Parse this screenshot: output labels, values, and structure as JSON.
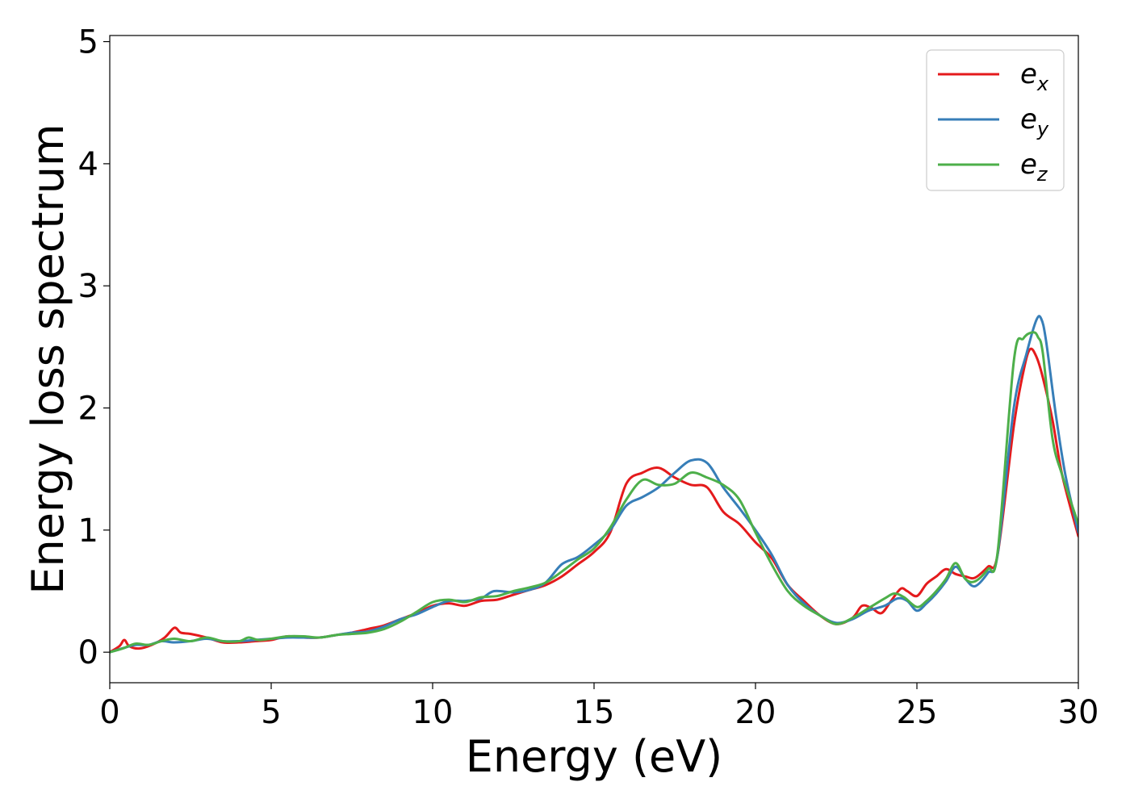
{
  "chart_data": {
    "type": "line",
    "title": "",
    "xlabel": "Energy (eV)",
    "ylabel": "Energy loss spectrum",
    "xlim": [
      0,
      30
    ],
    "ylim": [
      -0.25,
      5.05
    ],
    "xticks": [
      0,
      5,
      10,
      15,
      20,
      25,
      30
    ],
    "yticks": [
      0,
      1,
      2,
      3,
      4,
      5
    ],
    "grid": false,
    "legend_position": "top-right",
    "series": [
      {
        "name": "e",
        "subscript": "x",
        "color": "#e41a1c",
        "x": [
          0,
          0.3,
          0.45,
          0.6,
          0.9,
          1.3,
          1.7,
          2.0,
          2.2,
          2.5,
          3.0,
          3.5,
          4.0,
          4.5,
          5.0,
          5.5,
          6.0,
          6.5,
          7.0,
          7.5,
          8.0,
          8.5,
          9.0,
          9.5,
          10.0,
          10.5,
          11.0,
          11.5,
          12.0,
          12.5,
          13.0,
          13.5,
          14.0,
          14.5,
          15.0,
          15.5,
          16.0,
          16.5,
          17.0,
          17.5,
          18.0,
          18.5,
          19.0,
          19.5,
          20.0,
          20.5,
          21.0,
          21.5,
          22.0,
          22.5,
          23.0,
          23.3,
          23.6,
          23.9,
          24.2,
          24.5,
          24.7,
          25.0,
          25.3,
          25.6,
          25.9,
          26.2,
          26.5,
          26.8,
          27.2,
          27.5,
          28.0,
          28.3,
          28.5,
          28.7,
          28.9,
          29.2,
          29.5,
          30.0
        ],
        "y": [
          0.0,
          0.05,
          0.1,
          0.05,
          0.03,
          0.06,
          0.12,
          0.2,
          0.16,
          0.15,
          0.12,
          0.08,
          0.08,
          0.09,
          0.1,
          0.13,
          0.12,
          0.12,
          0.14,
          0.16,
          0.19,
          0.22,
          0.27,
          0.32,
          0.38,
          0.4,
          0.38,
          0.42,
          0.43,
          0.47,
          0.51,
          0.55,
          0.62,
          0.72,
          0.82,
          0.98,
          1.38,
          1.47,
          1.51,
          1.43,
          1.37,
          1.35,
          1.15,
          1.05,
          0.9,
          0.77,
          0.55,
          0.42,
          0.3,
          0.23,
          0.28,
          0.38,
          0.36,
          0.32,
          0.42,
          0.52,
          0.5,
          0.46,
          0.56,
          0.62,
          0.68,
          0.64,
          0.62,
          0.61,
          0.7,
          0.8,
          1.85,
          2.3,
          2.48,
          2.42,
          2.25,
          1.9,
          1.45,
          0.95
        ]
      },
      {
        "name": "e",
        "subscript": "y",
        "color": "#377eb8",
        "x": [
          0,
          0.5,
          0.8,
          1.2,
          1.6,
          2.0,
          2.5,
          3.0,
          3.5,
          4.0,
          4.5,
          5.0,
          5.5,
          6.0,
          6.5,
          7.0,
          7.5,
          8.0,
          8.5,
          9.0,
          9.5,
          10.0,
          10.5,
          11.0,
          11.5,
          11.9,
          12.5,
          13.0,
          13.5,
          14.0,
          14.5,
          15.0,
          15.5,
          16.0,
          16.5,
          17.0,
          17.5,
          18.0,
          18.5,
          19.0,
          19.5,
          20.0,
          20.5,
          21.0,
          21.5,
          22.0,
          22.5,
          23.0,
          23.5,
          24.0,
          24.4,
          24.7,
          25.0,
          25.3,
          25.6,
          25.9,
          26.2,
          26.5,
          26.8,
          27.2,
          27.5,
          28.0,
          28.4,
          28.7,
          28.85,
          29.0,
          29.3,
          29.6,
          30.0
        ],
        "y": [
          0.0,
          0.04,
          0.06,
          0.06,
          0.09,
          0.08,
          0.09,
          0.11,
          0.09,
          0.09,
          0.1,
          0.11,
          0.12,
          0.12,
          0.12,
          0.14,
          0.16,
          0.17,
          0.21,
          0.27,
          0.31,
          0.37,
          0.42,
          0.42,
          0.44,
          0.5,
          0.49,
          0.51,
          0.57,
          0.72,
          0.78,
          0.88,
          1.0,
          1.2,
          1.27,
          1.35,
          1.47,
          1.57,
          1.55,
          1.35,
          1.18,
          1.0,
          0.8,
          0.55,
          0.4,
          0.3,
          0.24,
          0.27,
          0.34,
          0.38,
          0.44,
          0.42,
          0.34,
          0.4,
          0.48,
          0.58,
          0.7,
          0.6,
          0.54,
          0.65,
          0.8,
          2.0,
          2.45,
          2.72,
          2.73,
          2.55,
          1.95,
          1.45,
          0.98
        ]
      },
      {
        "name": "e",
        "subscript": "z",
        "color": "#4daf4a",
        "x": [
          0,
          0.4,
          0.8,
          1.2,
          1.6,
          2.0,
          2.5,
          3.0,
          3.5,
          4.0,
          4.3,
          4.6,
          5.0,
          5.5,
          6.0,
          6.5,
          7.0,
          7.5,
          8.0,
          8.5,
          9.0,
          9.5,
          10.0,
          10.5,
          11.0,
          11.5,
          12.0,
          12.5,
          13.0,
          13.5,
          14.0,
          14.5,
          15.0,
          15.5,
          16.0,
          16.5,
          17.0,
          17.5,
          18.0,
          18.5,
          19.0,
          19.5,
          20.0,
          20.5,
          21.0,
          21.5,
          22.0,
          22.5,
          23.0,
          23.5,
          24.0,
          24.3,
          24.6,
          25.0,
          25.3,
          25.6,
          25.9,
          26.2,
          26.5,
          26.8,
          27.2,
          27.5,
          28.0,
          28.3,
          28.6,
          28.75,
          28.9,
          29.2,
          29.5,
          30.0
        ],
        "y": [
          0.0,
          0.03,
          0.07,
          0.06,
          0.09,
          0.11,
          0.09,
          0.12,
          0.09,
          0.09,
          0.12,
          0.1,
          0.11,
          0.13,
          0.13,
          0.12,
          0.14,
          0.15,
          0.16,
          0.19,
          0.25,
          0.33,
          0.41,
          0.43,
          0.41,
          0.45,
          0.46,
          0.5,
          0.53,
          0.57,
          0.66,
          0.76,
          0.85,
          1.02,
          1.25,
          1.41,
          1.37,
          1.38,
          1.47,
          1.43,
          1.37,
          1.25,
          0.98,
          0.72,
          0.5,
          0.38,
          0.3,
          0.23,
          0.28,
          0.36,
          0.44,
          0.48,
          0.45,
          0.37,
          0.42,
          0.5,
          0.6,
          0.73,
          0.6,
          0.58,
          0.68,
          0.82,
          2.38,
          2.57,
          2.62,
          2.58,
          2.45,
          1.75,
          1.45,
          1.05
        ]
      }
    ]
  }
}
